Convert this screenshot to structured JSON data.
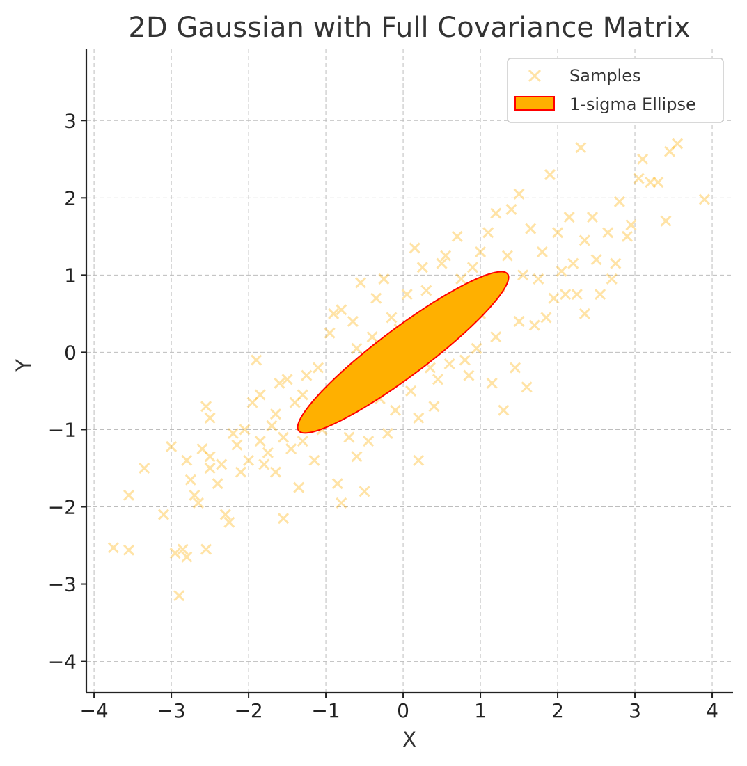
{
  "chart_data": {
    "type": "scatter",
    "title": "2D Gaussian with Full Covariance Matrix",
    "xlabel": "X",
    "ylabel": "Y",
    "xlim": [
      -4.1,
      4.27
    ],
    "ylim": [
      -4.4,
      3.93
    ],
    "xticks": [
      -4,
      -3,
      -2,
      -1,
      0,
      1,
      2,
      3,
      4
    ],
    "yticks": [
      -4,
      -3,
      -2,
      -1,
      0,
      1,
      2,
      3
    ],
    "xtick_labels": [
      "−4",
      "−3",
      "−2",
      "−1",
      "0",
      "1",
      "2",
      "3",
      "4"
    ],
    "ytick_labels": [
      "−4",
      "−3",
      "−2",
      "−1",
      "0",
      "1",
      "2",
      "3"
    ],
    "grid": true,
    "legend_position": "top-right",
    "colors": {
      "samples": "#ffb000",
      "ellipse_fill": "#ffb000",
      "ellipse_edge": "#ff0000"
    },
    "series": [
      {
        "name": "Samples",
        "marker": "x",
        "points": [
          [
            -3.75,
            -2.53
          ],
          [
            -3.55,
            -2.56
          ],
          [
            -3.55,
            -1.85
          ],
          [
            -3.35,
            -1.5
          ],
          [
            -3.1,
            -2.1
          ],
          [
            -3.0,
            -1.22
          ],
          [
            -2.95,
            -2.6
          ],
          [
            -2.9,
            -3.15
          ],
          [
            -2.85,
            -2.55
          ],
          [
            -2.8,
            -2.65
          ],
          [
            -2.8,
            -1.4
          ],
          [
            -2.75,
            -1.65
          ],
          [
            -2.7,
            -1.85
          ],
          [
            -2.65,
            -1.95
          ],
          [
            -2.6,
            -1.25
          ],
          [
            -2.5,
            -1.35
          ],
          [
            -2.5,
            -1.5
          ],
          [
            -2.55,
            -0.7
          ],
          [
            -2.5,
            -0.85
          ],
          [
            -2.55,
            -2.55
          ],
          [
            -2.4,
            -1.7
          ],
          [
            -2.35,
            -1.45
          ],
          [
            -2.3,
            -2.1
          ],
          [
            -2.25,
            -2.2
          ],
          [
            -2.2,
            -1.05
          ],
          [
            -2.15,
            -1.2
          ],
          [
            -2.1,
            -1.55
          ],
          [
            -2.05,
            -1.0
          ],
          [
            -2.0,
            -1.4
          ],
          [
            -1.95,
            -0.65
          ],
          [
            -1.9,
            -0.1
          ],
          [
            -1.85,
            -0.55
          ],
          [
            -1.85,
            -1.15
          ],
          [
            -1.8,
            -1.45
          ],
          [
            -1.75,
            -1.3
          ],
          [
            -1.7,
            -0.95
          ],
          [
            -1.65,
            -0.8
          ],
          [
            -1.65,
            -1.55
          ],
          [
            -1.6,
            -0.4
          ],
          [
            -1.55,
            -1.1
          ],
          [
            -1.55,
            -2.15
          ],
          [
            -1.5,
            -0.35
          ],
          [
            -1.45,
            -1.25
          ],
          [
            -1.4,
            -0.65
          ],
          [
            -1.35,
            -1.75
          ],
          [
            -1.3,
            -1.15
          ],
          [
            -1.25,
            -0.3
          ],
          [
            -1.2,
            -0.85
          ],
          [
            -1.15,
            -1.4
          ],
          [
            -1.1,
            -0.2
          ],
          [
            -1.05,
            -1.0
          ],
          [
            -1.0,
            -0.55
          ],
          [
            -0.95,
            0.25
          ],
          [
            -0.9,
            0.5
          ],
          [
            -0.85,
            -1.7
          ],
          [
            -0.8,
            -1.95
          ],
          [
            -0.8,
            0.55
          ],
          [
            -0.75,
            -0.3
          ],
          [
            -0.7,
            -1.1
          ],
          [
            -0.65,
            0.4
          ],
          [
            -0.6,
            -1.35
          ],
          [
            -0.55,
            0.9
          ],
          [
            -0.5,
            -1.8
          ],
          [
            -0.45,
            -1.15
          ],
          [
            -0.4,
            0.2
          ],
          [
            -0.35,
            0.7
          ],
          [
            -0.3,
            -0.6
          ],
          [
            -0.25,
            0.95
          ],
          [
            -0.2,
            -1.05
          ],
          [
            -0.15,
            0.45
          ],
          [
            -0.1,
            -0.75
          ],
          [
            -0.05,
            0.3
          ],
          [
            0.05,
            0.75
          ],
          [
            0.1,
            -0.5
          ],
          [
            0.15,
            1.35
          ],
          [
            0.2,
            -0.85
          ],
          [
            0.2,
            -1.4
          ],
          [
            0.25,
            1.1
          ],
          [
            0.3,
            0.8
          ],
          [
            0.35,
            -0.2
          ],
          [
            0.4,
            -0.7
          ],
          [
            0.45,
            0.6
          ],
          [
            0.5,
            1.15
          ],
          [
            0.55,
            1.25
          ],
          [
            0.6,
            -0.15
          ],
          [
            0.65,
            0.45
          ],
          [
            0.7,
            1.5
          ],
          [
            0.75,
            0.95
          ],
          [
            0.8,
            -0.1
          ],
          [
            0.85,
            -0.3
          ],
          [
            0.9,
            1.1
          ],
          [
            0.95,
            0.05
          ],
          [
            1.0,
            1.3
          ],
          [
            1.05,
            0.65
          ],
          [
            1.1,
            1.55
          ],
          [
            1.15,
            -0.4
          ],
          [
            1.2,
            1.8
          ],
          [
            1.25,
            0.85
          ],
          [
            1.3,
            -0.75
          ],
          [
            1.35,
            1.25
          ],
          [
            1.4,
            1.85
          ],
          [
            1.45,
            -0.2
          ],
          [
            1.5,
            2.05
          ],
          [
            1.5,
            0.4
          ],
          [
            1.55,
            1.0
          ],
          [
            1.6,
            -0.45
          ],
          [
            1.65,
            1.6
          ],
          [
            1.7,
            0.35
          ],
          [
            1.75,
            0.95
          ],
          [
            1.8,
            1.3
          ],
          [
            1.85,
            0.45
          ],
          [
            1.9,
            2.3
          ],
          [
            1.95,
            0.7
          ],
          [
            2.0,
            1.55
          ],
          [
            2.05,
            1.05
          ],
          [
            2.1,
            0.75
          ],
          [
            2.15,
            1.75
          ],
          [
            2.2,
            1.15
          ],
          [
            2.25,
            0.75
          ],
          [
            2.3,
            2.65
          ],
          [
            2.35,
            1.45
          ],
          [
            2.35,
            0.5
          ],
          [
            2.45,
            1.75
          ],
          [
            2.5,
            1.2
          ],
          [
            2.55,
            0.75
          ],
          [
            2.65,
            1.55
          ],
          [
            2.7,
            0.95
          ],
          [
            2.75,
            1.15
          ],
          [
            2.8,
            1.95
          ],
          [
            2.9,
            1.5
          ],
          [
            2.95,
            1.65
          ],
          [
            3.05,
            2.25
          ],
          [
            3.1,
            2.5
          ],
          [
            3.2,
            2.2
          ],
          [
            3.3,
            2.2
          ],
          [
            3.4,
            1.7
          ],
          [
            3.45,
            2.6
          ],
          [
            3.55,
            2.7
          ],
          [
            3.9,
            1.98
          ],
          [
            -0.6,
            0.05
          ],
          [
            -0.3,
            0.1
          ],
          [
            0.0,
            -0.2
          ],
          [
            0.3,
            0.15
          ],
          [
            0.6,
            0.35
          ],
          [
            1.0,
            0.5
          ],
          [
            1.2,
            0.2
          ],
          [
            0.45,
            -0.35
          ],
          [
            -0.9,
            -0.65
          ],
          [
            -1.3,
            -0.55
          ]
        ]
      },
      {
        "name": "1-sigma Ellipse",
        "shape": "ellipse",
        "center": [
          0.0,
          0.0
        ],
        "semi_axes": [
          1.69,
          0.31
        ],
        "angle_deg": 36.87
      }
    ]
  }
}
